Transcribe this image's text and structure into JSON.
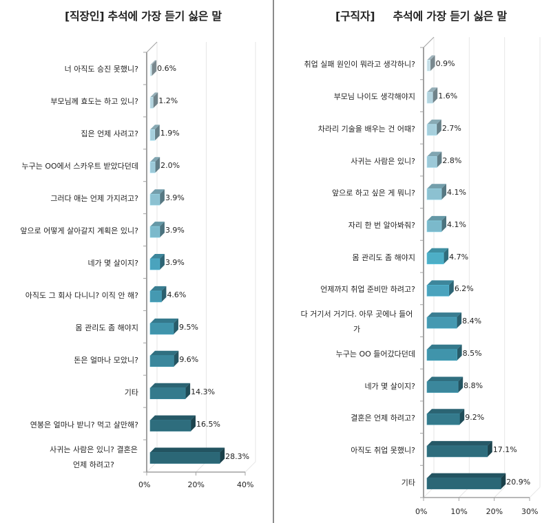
{
  "chart_data": [
    {
      "type": "bar",
      "orientation": "horizontal",
      "style": "3d",
      "title": "[직장인] 추석에 가장 듣기 싫은 말",
      "categories": [
        "너 아직도 승진 못했니?",
        "부모님께 효도는 하고 있니?",
        "집은 언제 사려고?",
        "누구는 OO에서 스카우트 받았다던데",
        "그러다 애는 언제 가지려고?",
        "앞으로 어떻게 살아갈지 계획은 있니?",
        "네가 몇 살이지?",
        "아직도 그 회사 다니니? 이직 안 해?",
        "몸 관리도 좀 해야지",
        "돈은 얼마나 모았니?",
        "기타",
        "연봉은 얼마나 받니? 먹고 살만해?",
        "사귀는 사람은 있니? 결혼은 언제 하려고?"
      ],
      "values": [
        0.6,
        1.2,
        1.9,
        2.0,
        3.9,
        3.9,
        3.9,
        4.6,
        9.5,
        9.6,
        14.3,
        16.5,
        28.3
      ],
      "value_labels": [
        "0.6%",
        "1.2%",
        "1.9%",
        "2.0%",
        "3.9%",
        "3.9%",
        "3.9%",
        "4.6%",
        "9.5%",
        "9.6%",
        "14.3%",
        "16.5%",
        "28.3%"
      ],
      "xlabel": "",
      "ylabel": "",
      "xlim": [
        0,
        40
      ],
      "xticks": [
        "0%",
        "20%",
        "40%"
      ],
      "grid": true,
      "legend": "none"
    },
    {
      "type": "bar",
      "orientation": "horizontal",
      "style": "3d",
      "title": "[구직자]     추석에 가장 듣기 싫은 말",
      "categories": [
        "취업 실패 원인이 뭐라고 생각하니?",
        "부모님 나이도 생각해야지",
        "차라리 기술을 배우는 건 어때?",
        "사귀는 사람은 있니?",
        "앞으로 하고 싶은 게 뭐니?",
        "자리 한 번 알아봐줘?",
        "몸 관리도 좀 해야지",
        "언제까지 취업 준비만 하려고?",
        "다 거기서 거기다. 아무 곳에나 들어가",
        "누구는 OO 들어갔다던데",
        "네가 몇 살이지?",
        "결혼은 언제 하려고?",
        "아직도 취업 못했니?",
        "기타"
      ],
      "values": [
        0.9,
        1.6,
        2.7,
        2.8,
        4.1,
        4.1,
        4.7,
        6.2,
        8.4,
        8.5,
        8.8,
        9.2,
        17.1,
        20.9
      ],
      "value_labels": [
        "0.9%",
        "1.6%",
        "2.7%",
        "2.8%",
        "4.1%",
        "4.1%",
        "4.7%",
        "6.2%",
        "8.4%",
        "8.5%",
        "8.8%",
        "9.2%",
        "17.1%",
        "20.9%"
      ],
      "xlabel": "",
      "ylabel": "",
      "xlim": [
        0,
        30
      ],
      "xticks": [
        "0%",
        "10%",
        "20%",
        "30%"
      ],
      "grid": true,
      "legend": "none"
    }
  ],
  "left": {
    "title": "[직장인] 추석에 가장 듣기 싫은 말",
    "categories": [
      "너 아직도 승진 못했니?",
      "부모님께 효도는 하고 있니?",
      "집은 언제 사려고?",
      "누구는 OO에서 스카우트 받았다던데",
      "그러다 애는 언제 가지려고?",
      "앞으로 어떻게 살아갈지 계획은 있니?",
      "네가 몇 살이지?",
      "아직도 그 회사 다니니? 이직 안 해?",
      "몸 관리도 좀 해야지",
      "돈은 얼마나 모았니?",
      "기타",
      "연봉은 얼마나 받니? 먹고 살만해?",
      "사귀는 사람은 있니? 결혼은 언제 하려고?"
    ],
    "values": [
      0.6,
      1.2,
      1.9,
      2.0,
      3.9,
      3.9,
      3.9,
      4.6,
      9.5,
      9.6,
      14.3,
      16.5,
      28.3
    ],
    "labels": [
      "0.6%",
      "1.2%",
      "1.9%",
      "2.0%",
      "3.9%",
      "3.9%",
      "3.9%",
      "4.6%",
      "9.5%",
      "9.6%",
      "14.3%",
      "16.5%",
      "28.3%"
    ],
    "ticks": [
      "0%",
      "20%",
      "40%"
    ],
    "max": 40
  },
  "right": {
    "title": "[구직자]     추석에 가장 듣기 싫은 말",
    "categories": [
      "취업 실패 원인이 뭐라고 생각하니?",
      "부모님 나이도 생각해야지",
      "차라리 기술을 배우는 건 어때?",
      "사귀는 사람은 있니?",
      "앞으로 하고 싶은 게 뭐니?",
      "자리 한 번 알아봐줘?",
      "몸 관리도 좀 해야지",
      "언제까지 취업 준비만 하려고?",
      "다 거기서 거기다. 아무 곳에나 들어가",
      "누구는 OO 들어갔다던데",
      "네가 몇 살이지?",
      "결혼은 언제 하려고?",
      "아직도 취업 못했니?",
      "기타"
    ],
    "values": [
      0.9,
      1.6,
      2.7,
      2.8,
      4.1,
      4.1,
      4.7,
      6.2,
      8.4,
      8.5,
      8.8,
      9.2,
      17.1,
      20.9
    ],
    "labels": [
      "0.9%",
      "1.6%",
      "2.7%",
      "2.8%",
      "4.1%",
      "4.1%",
      "4.7%",
      "6.2%",
      "8.4%",
      "8.5%",
      "8.8%",
      "9.2%",
      "17.1%",
      "20.9%"
    ],
    "ticks": [
      "0%",
      "10%",
      "20%",
      "30%"
    ],
    "max": 30
  },
  "colors": {
    "gradient": [
      "#c5dde6",
      "#b4d4df",
      "#a6cfdc",
      "#9cc9d8",
      "#8cc1d1",
      "#7bb9cb",
      "#4daec6",
      "#4aa3bd",
      "#4599b1",
      "#4094ab",
      "#3b879c",
      "#347a8c",
      "#2e6d7d",
      "#2b6776"
    ],
    "axis": "#a0a0a0",
    "grid": "#e6e6e6",
    "divider": "#8a8a8a"
  }
}
